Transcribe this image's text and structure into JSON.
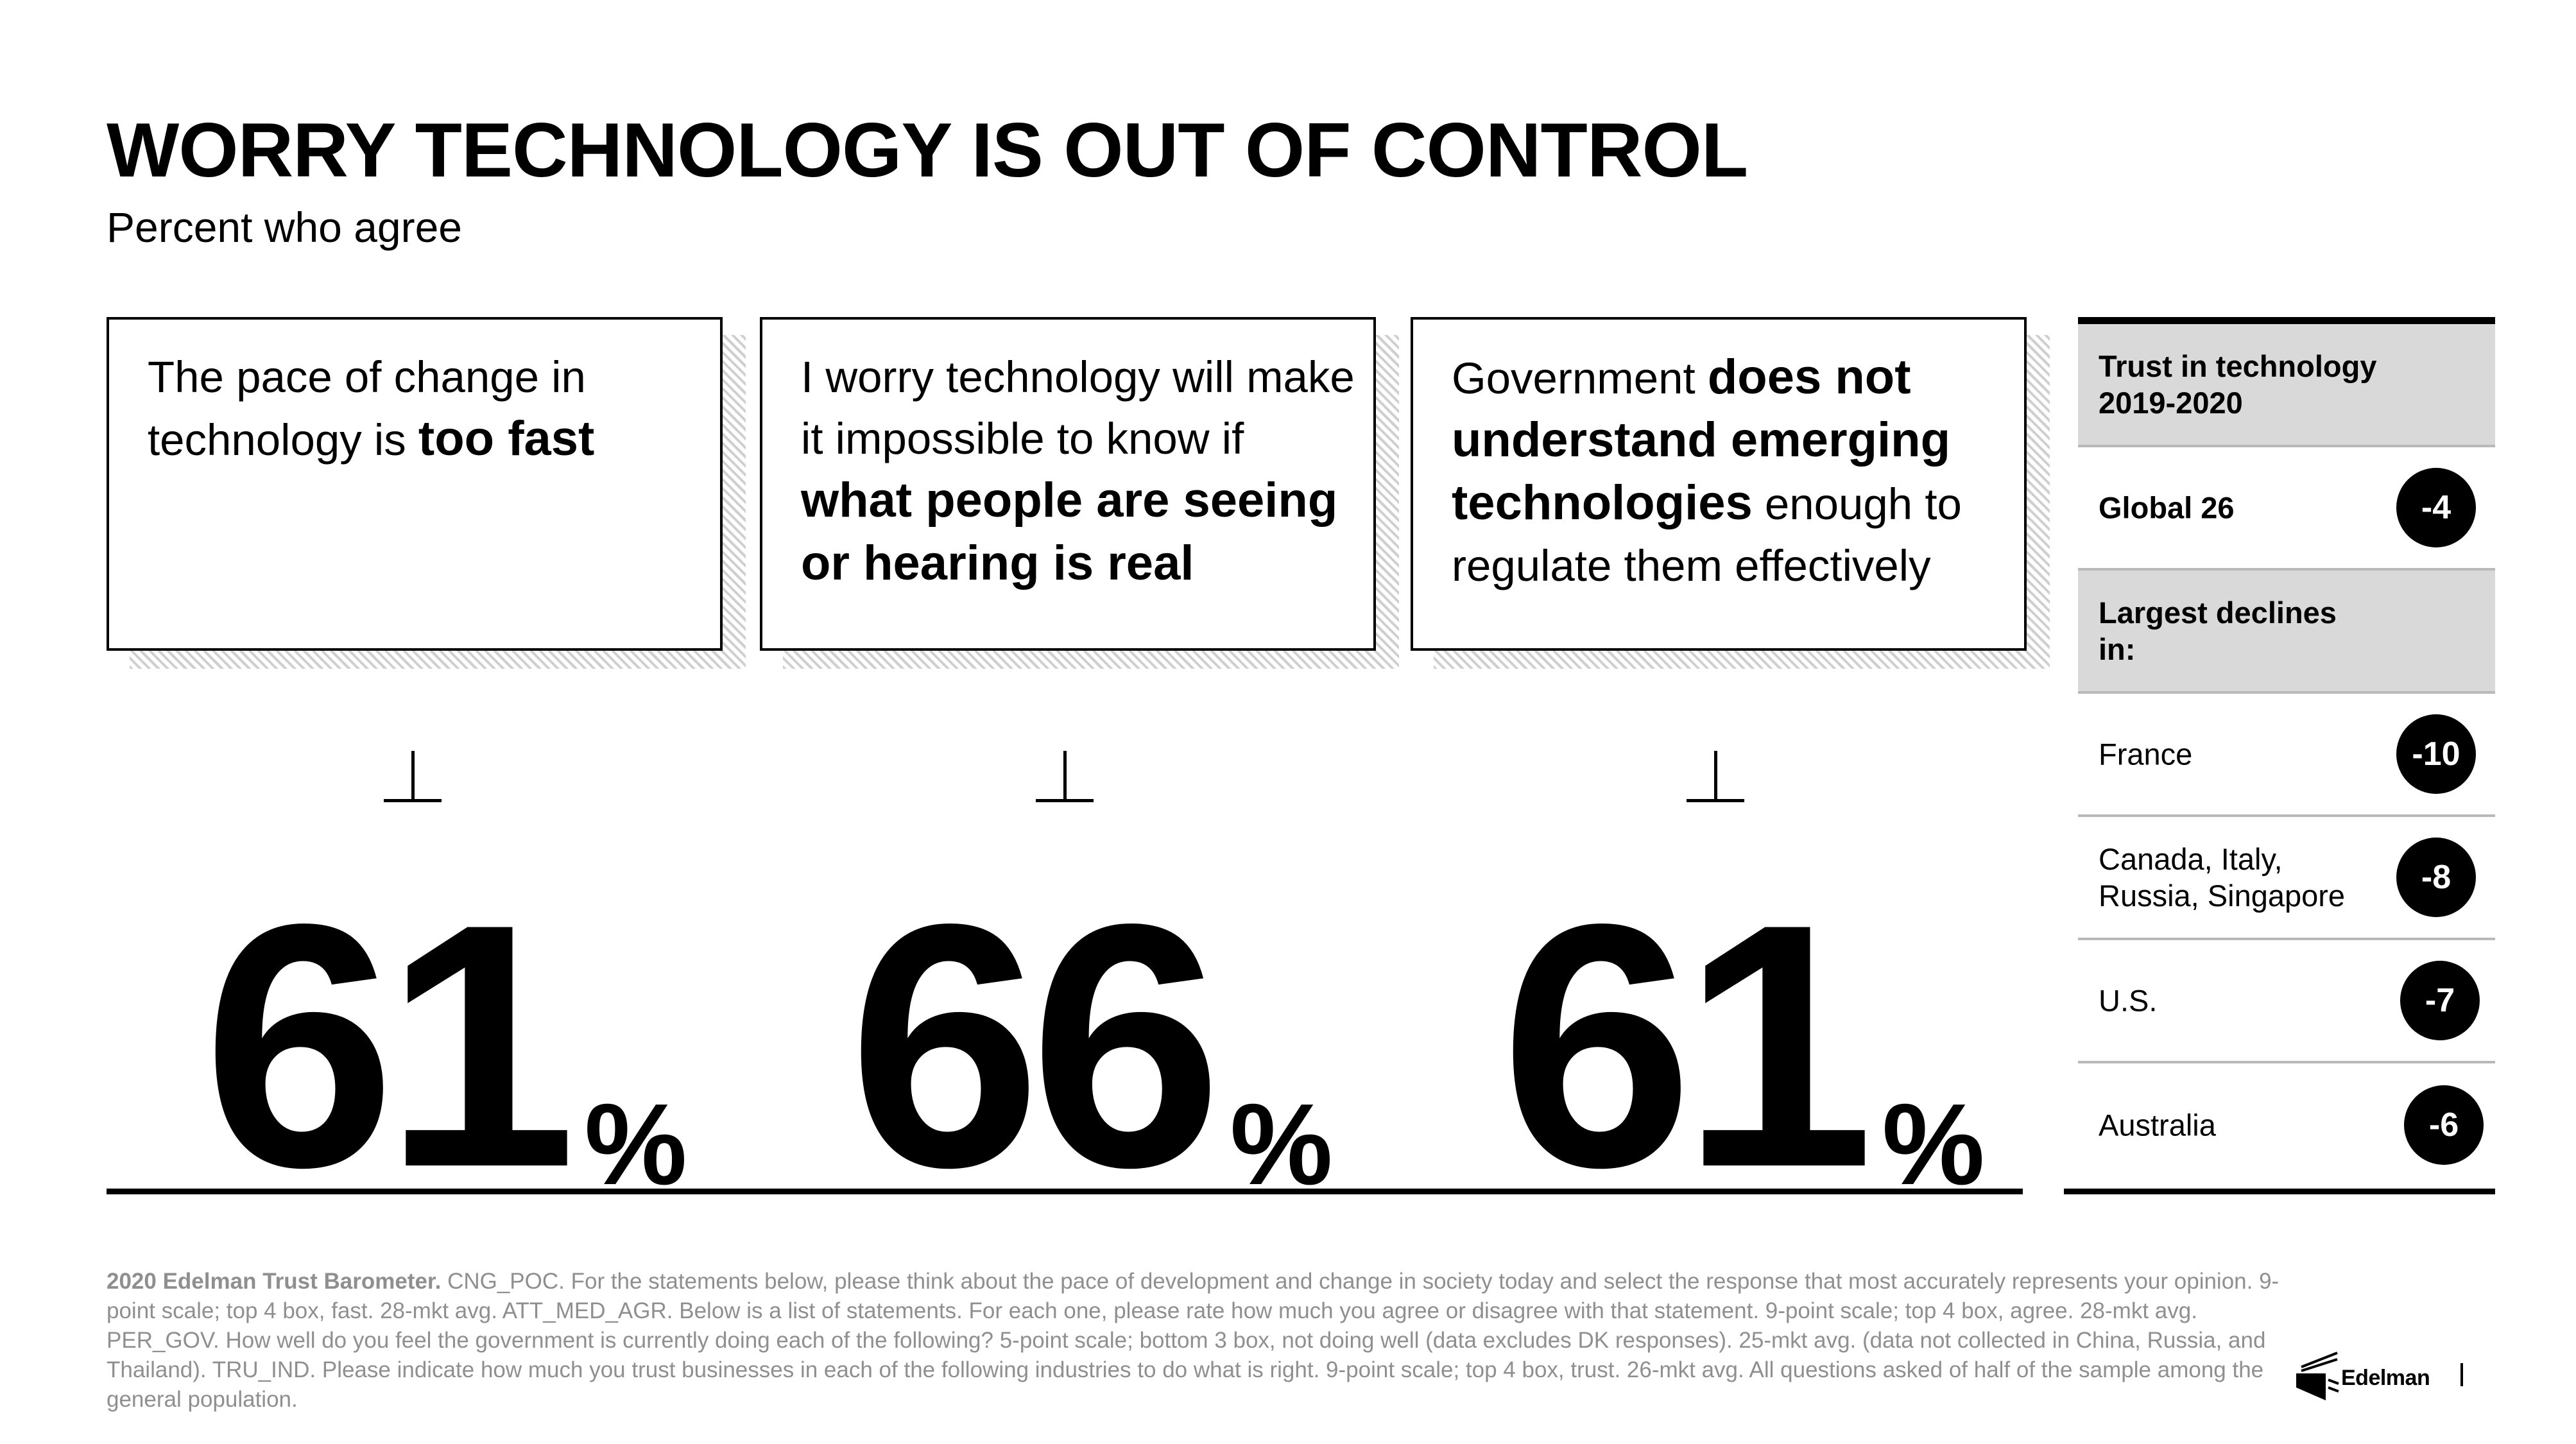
{
  "header": {
    "title": "WORRY TECHNOLOGY IS OUT OF CONTROL",
    "subtitle": "Percent who agree"
  },
  "cards": [
    {
      "parts": [
        "The pace of change in technology is ",
        "too fast",
        ""
      ],
      "value": "61",
      "unit": "%"
    },
    {
      "parts": [
        "I worry technology will make it impossible to know if ",
        "what people are seeing or hearing is real",
        ""
      ],
      "value": "66",
      "unit": "%"
    },
    {
      "parts": [
        "Government ",
        "does not understand emerging technologies",
        " enough to regulate them effectively"
      ],
      "value": "61",
      "unit": "%"
    }
  ],
  "trust_panel": {
    "heading": "Trust in technology 2019-2020",
    "global_label": "Global 26",
    "global_change": "-4",
    "declines_heading": "Largest declines in:",
    "declines": [
      {
        "label": "France",
        "change": "-10"
      },
      {
        "label": "Canada, Italy, Russia, Singapore",
        "change": "-8"
      },
      {
        "label": "U.S.",
        "change": "-7"
      },
      {
        "label": "Australia",
        "change": "-6"
      }
    ]
  },
  "footnote": {
    "bold": "2020 Edelman Trust Barometer.",
    "text": " CNG_POC. For the statements below, please think about the pace of development and change in society today and select the response that most accurately represents your opinion. 9-point scale; top 4 box, fast. 28-mkt avg. ATT_MED_AGR. Below is a list of statements. For each one, please rate how much you agree or disagree with that statement. 9-point scale; top 4 box, agree. 28-mkt avg. PER_GOV. How well do you feel the government is currently doing each of the following? 5-point scale; bottom 3 box, not doing well (data excludes DK responses). 25-mkt avg. (data not collected in China, Russia, and Thailand). TRU_IND. Please indicate how much you trust businesses in each of the following industries to do what is right. 9-point scale; top 4 box, trust. 26-mkt avg. All questions asked of half of the sample among the general population."
  },
  "brand": {
    "name": "Edelman"
  }
}
